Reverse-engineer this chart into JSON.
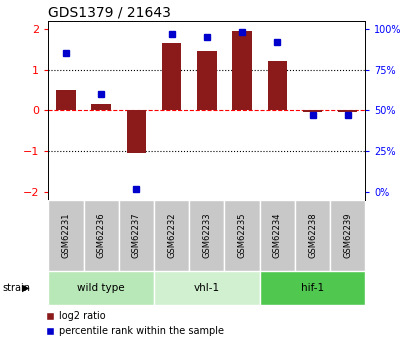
{
  "title": "GDS1379 / 21643",
  "samples": [
    "GSM62231",
    "GSM62236",
    "GSM62237",
    "GSM62232",
    "GSM62233",
    "GSM62235",
    "GSM62234",
    "GSM62238",
    "GSM62239"
  ],
  "log2_ratio": [
    0.5,
    0.15,
    -1.05,
    1.65,
    1.45,
    1.95,
    1.2,
    -0.05,
    -0.05
  ],
  "percentile_rank": [
    85,
    60,
    2,
    97,
    95,
    98,
    92,
    47,
    47
  ],
  "groups": [
    {
      "label": "wild type",
      "start": 0,
      "end": 3,
      "color": "#b8e8b8"
    },
    {
      "label": "vhl-1",
      "start": 3,
      "end": 6,
      "color": "#d0f0d0"
    },
    {
      "label": "hif-1",
      "start": 6,
      "end": 9,
      "color": "#50c850"
    }
  ],
  "ylim_left": [
    -2.2,
    2.2
  ],
  "ylim_right": [
    0,
    110
  ],
  "bar_color": "#8B1A1A",
  "dot_color": "#0000CC",
  "sample_bg": "#c8c8c8",
  "legend_bar_label": "log2 ratio",
  "legend_dot_label": "percentile rank within the sample",
  "left_yticks": [
    -2,
    -1,
    0,
    1,
    2
  ],
  "right_yticks": [
    0,
    25,
    50,
    75,
    100
  ],
  "right_yticklabels": [
    "0%",
    "25%",
    "50%",
    "75%",
    "100%"
  ]
}
